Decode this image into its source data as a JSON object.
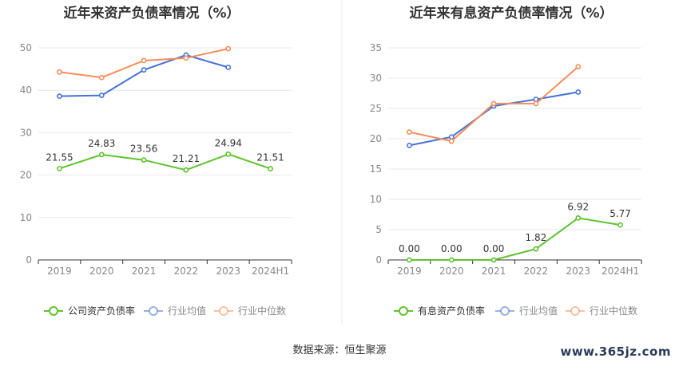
{
  "colors": {
    "green": "#5ec32f",
    "blue": "#4472d4",
    "orange": "#f28e5c",
    "grid": "#e4e7ef",
    "axis": "#333333",
    "tick_label": "#888888",
    "divider": "#eeeeee"
  },
  "source_text": "数据来源：恒生聚源",
  "watermark_text": "www.365jz.com",
  "chart_data": [
    {
      "type": "line",
      "title": "近年来资产负债率情况（%）",
      "categories": [
        "2019",
        "2020",
        "2021",
        "2022",
        "2023",
        "2024H1"
      ],
      "ylim": [
        0,
        50
      ],
      "yticks": [
        0,
        10,
        20,
        30,
        40,
        50
      ],
      "grid": true,
      "legend_position": "bottom",
      "series": [
        {
          "name": "公司资产负债率",
          "color": "green",
          "values": [
            21.55,
            24.83,
            23.56,
            21.21,
            24.94,
            21.51
          ],
          "labels": [
            "21.55",
            "24.83",
            "23.56",
            "21.21",
            "24.94",
            "21.51"
          ]
        },
        {
          "name": "行业均值",
          "color": "blue",
          "values": [
            38.6,
            38.8,
            44.8,
            48.3,
            45.4,
            null
          ]
        },
        {
          "name": "行业中位数",
          "color": "orange",
          "values": [
            44.3,
            43.0,
            47.0,
            47.6,
            49.8,
            null
          ]
        }
      ]
    },
    {
      "type": "line",
      "title": "近年来有息资产负债率情况（%）",
      "categories": [
        "2019",
        "2020",
        "2021",
        "2022",
        "2023",
        "2024H1"
      ],
      "ylim": [
        0,
        35
      ],
      "yticks": [
        0,
        5,
        10,
        15,
        20,
        25,
        30,
        35
      ],
      "grid": true,
      "legend_position": "bottom",
      "series": [
        {
          "name": "有息资产负债率",
          "color": "green",
          "values": [
            0.0,
            0.0,
            0.0,
            1.82,
            6.92,
            5.77
          ],
          "labels": [
            "0.00",
            "0.00",
            "0.00",
            "1.82",
            "6.92",
            "5.77"
          ]
        },
        {
          "name": "行业均值",
          "color": "blue",
          "values": [
            18.9,
            20.3,
            25.4,
            26.5,
            27.7,
            null
          ]
        },
        {
          "name": "行业中位数",
          "color": "orange",
          "values": [
            21.1,
            19.6,
            25.8,
            25.8,
            31.9,
            null
          ]
        }
      ]
    }
  ]
}
